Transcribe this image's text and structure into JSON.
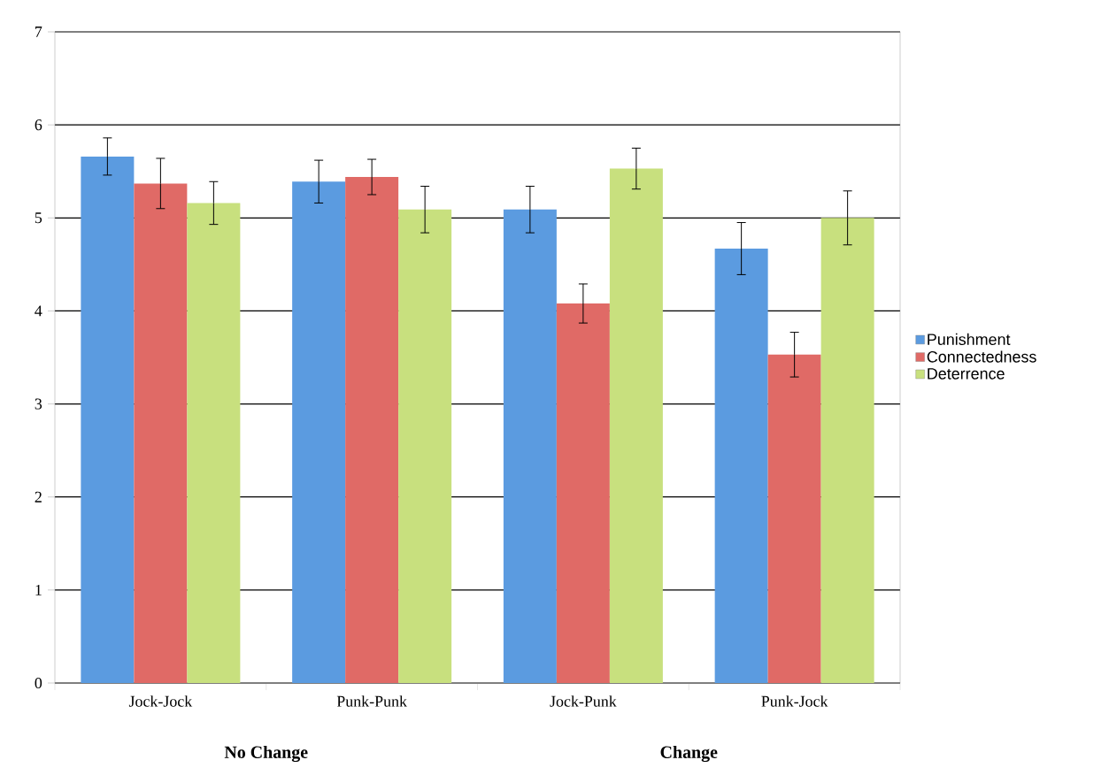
{
  "chart_data": {
    "type": "bar",
    "categories": [
      "Jock-Jock",
      "Punk-Punk",
      "Jock-Punk",
      "Punk-Jock"
    ],
    "series": [
      {
        "name": "Punishment",
        "color": "#5b9be0",
        "values": [
          5.66,
          5.39,
          5.09,
          4.67
        ],
        "errors": [
          0.2,
          0.23,
          0.25,
          0.28
        ]
      },
      {
        "name": "Connectedness",
        "color": "#e06a66",
        "values": [
          5.37,
          5.44,
          4.08,
          3.53
        ],
        "errors": [
          0.27,
          0.19,
          0.21,
          0.24
        ]
      },
      {
        "name": "Deterrence",
        "color": "#c8e07e",
        "values": [
          5.16,
          5.09,
          5.53,
          5.0
        ],
        "errors": [
          0.23,
          0.25,
          0.22,
          0.29
        ]
      }
    ],
    "annotations": [
      "No Change",
      "Change"
    ],
    "ylim": [
      0,
      7
    ],
    "yticks": [
      0,
      1,
      2,
      3,
      4,
      5,
      6,
      7
    ],
    "grid": "y",
    "legend": "right"
  }
}
